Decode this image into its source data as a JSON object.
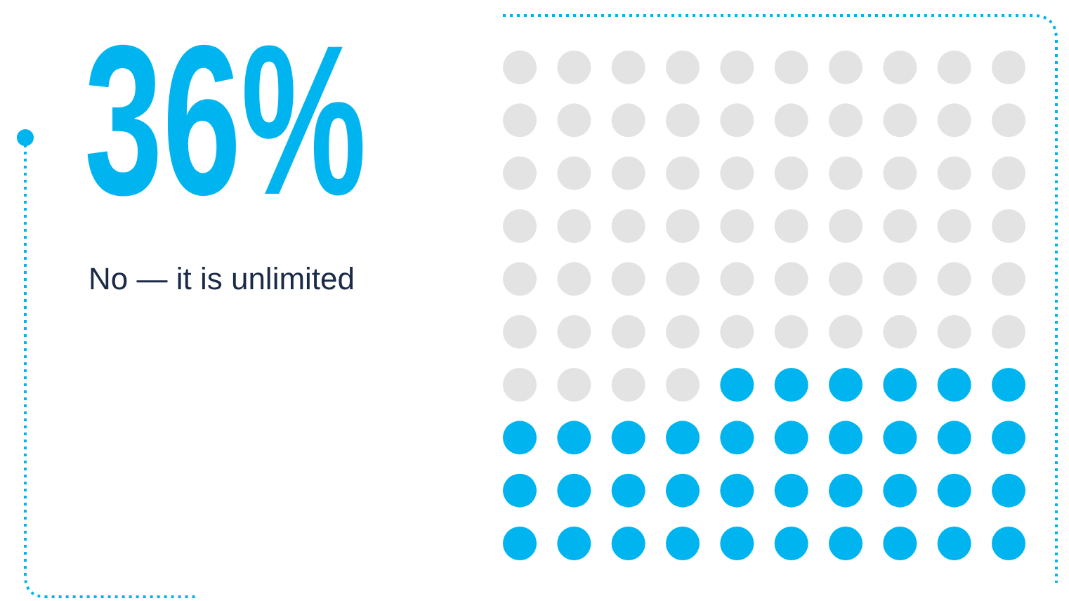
{
  "chart_data": {
    "type": "other",
    "categories": [
      "No — it is unlimited"
    ],
    "values": [
      36
    ],
    "value_labels": [
      "36%"
    ],
    "colors": [
      "#00b5ef"
    ],
    "data_labels": true
  }
}
